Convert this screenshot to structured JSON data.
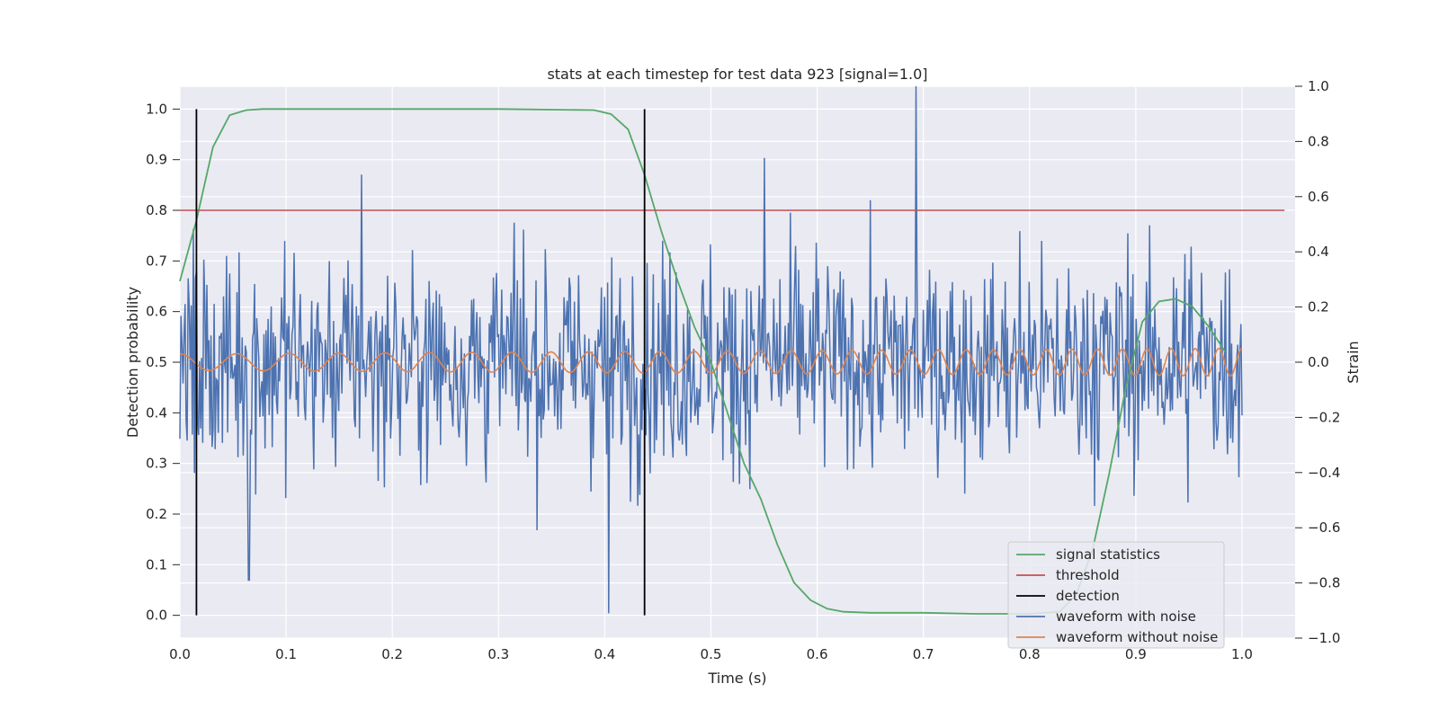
{
  "chart_data": {
    "type": "line",
    "title": "stats at each timestep for test data 923 [signal=1.0]",
    "xlabel": "Time (s)",
    "ylabel_left": "Detection probability",
    "ylabel_right": "Strain",
    "xlim": [
      0.0,
      1.05
    ],
    "ylim_left": [
      -0.045,
      1.045
    ],
    "ylim_right": [
      -1.0,
      1.0
    ],
    "xticks": [
      "0.0",
      "0.1",
      "0.2",
      "0.3",
      "0.4",
      "0.5",
      "0.6",
      "0.7",
      "0.8",
      "0.9",
      "1.0"
    ],
    "yticks_left": [
      "0.0",
      "0.1",
      "0.2",
      "0.3",
      "0.4",
      "0.5",
      "0.6",
      "0.7",
      "0.8",
      "0.9",
      "1.0"
    ],
    "yticks_right": [
      "−1.0",
      "−0.8",
      "−0.6",
      "−0.4",
      "−0.2",
      "0.0",
      "0.2",
      "0.4",
      "0.6",
      "0.8",
      "1.0"
    ],
    "grid": true,
    "legend_position": "lower-right",
    "colors": {
      "signal statistics": "#55a868",
      "threshold": "#c44e52",
      "detection": "#000000",
      "waveform with noise": "#4c72b0",
      "waveform without noise": "#dd8452",
      "plot_background": "#eaeaf2",
      "grid": "#ffffff"
    },
    "signal_statistics": {
      "x": [
        0.0,
        0.0156,
        0.0312,
        0.0469,
        0.0625,
        0.0781,
        0.1,
        0.2,
        0.3,
        0.39,
        0.406,
        0.422,
        0.4375,
        0.4531,
        0.4688,
        0.4844,
        0.5,
        0.5156,
        0.5312,
        0.5469,
        0.5625,
        0.5781,
        0.5938,
        0.6094,
        0.625,
        0.65,
        0.7,
        0.75,
        0.8,
        0.8281,
        0.8438,
        0.8594,
        0.875,
        0.8906,
        0.9062,
        0.9219,
        0.9375,
        0.9531,
        0.9688,
        0.9844
      ],
      "y": [
        0.66,
        0.78,
        0.925,
        0.988,
        0.998,
        1.0,
        1.0,
        1.0,
        1.0,
        0.998,
        0.99,
        0.96,
        0.87,
        0.76,
        0.66,
        0.57,
        0.5,
        0.4,
        0.3,
        0.23,
        0.14,
        0.065,
        0.03,
        0.013,
        0.007,
        0.005,
        0.005,
        0.003,
        0.003,
        0.007,
        0.04,
        0.13,
        0.28,
        0.45,
        0.58,
        0.62,
        0.625,
        0.61,
        0.57,
        0.52
      ]
    },
    "threshold": {
      "x": [
        0.0,
        1.04
      ],
      "y": [
        0.8,
        0.8
      ]
    },
    "detection": {
      "x": [
        0.0156,
        0.4375
      ],
      "y": [
        0.0,
        1.0
      ]
    },
    "waveform_with_noise": {
      "description": "noisy strain series, 1024 samples over 0–1 s, roughly ±0.6 with spikes to +1.0 at ~0.695 s and −0.91 at ~0.404 s; right axis",
      "x_range": [
        0.0,
        1.0
      ],
      "approx_std": 0.24,
      "peaks": [
        {
          "x": 0.693,
          "y": 1.0
        },
        {
          "x": 0.404,
          "y": -0.91
        },
        {
          "x": 0.065,
          "y": -0.79
        },
        {
          "x": 0.171,
          "y": 0.68
        },
        {
          "x": 0.55,
          "y": 0.74
        }
      ]
    },
    "waveform_without_noise": {
      "description": "chirp sinusoid on right axis, amplitude growing from ~0.03 to ~0.05, frequency increasing from ~18 Hz to ~46 Hz over 0–1 s",
      "x_range": [
        0.0,
        1.0
      ],
      "amplitude_start": 0.03,
      "amplitude_end": 0.05,
      "frequency_start_hz": 18,
      "frequency_end_hz": 46
    },
    "legend": [
      "signal statistics",
      "threshold",
      "detection",
      "waveform with noise",
      "waveform without noise"
    ]
  }
}
